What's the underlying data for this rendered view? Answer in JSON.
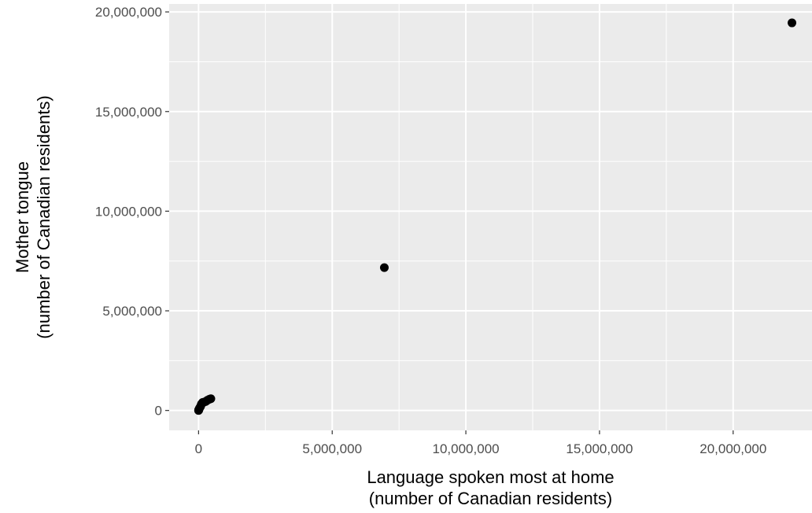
{
  "chart_data": {
    "type": "scatter",
    "title": "",
    "xlabel": [
      "Language spoken most at home",
      "(number of Canadian residents)"
    ],
    "ylabel": [
      "Mother tongue",
      "(number of Canadian residents)"
    ],
    "xlim": [
      -1100000,
      22950000
    ],
    "ylim": [
      -1000000,
      20400000
    ],
    "x_ticks": [
      0,
      5000000,
      10000000,
      15000000,
      20000000
    ],
    "x_tick_labels": [
      "0",
      "5,000,000",
      "10,000,000",
      "15,000,000",
      "20,000,000"
    ],
    "y_ticks": [
      0,
      5000000,
      10000000,
      15000000,
      20000000
    ],
    "y_tick_labels": [
      "0",
      "5,000,000",
      "10,000,000",
      "15,000,000",
      "20,000,000"
    ],
    "grid": true,
    "panel_color": "#ebebeb",
    "grid_color": "#ffffff",
    "point_color": "#000000",
    "points": [
      {
        "x": 22200000,
        "y": 19450000
      },
      {
        "x": 6950000,
        "y": 7170000
      },
      {
        "x": 460000,
        "y": 590000
      },
      {
        "x": 400000,
        "y": 560000
      },
      {
        "x": 330000,
        "y": 510000
      },
      {
        "x": 270000,
        "y": 450000
      },
      {
        "x": 210000,
        "y": 420000
      },
      {
        "x": 150000,
        "y": 400000
      },
      {
        "x": 110000,
        "y": 330000
      },
      {
        "x": 90000,
        "y": 260000
      },
      {
        "x": 70000,
        "y": 190000
      },
      {
        "x": 45000,
        "y": 140000
      },
      {
        "x": 30000,
        "y": 100000
      },
      {
        "x": 20000,
        "y": 70000
      },
      {
        "x": 12000,
        "y": 45000
      },
      {
        "x": 8000,
        "y": 30000
      },
      {
        "x": 5000,
        "y": 15000
      },
      {
        "x": 2000,
        "y": 8000
      },
      {
        "x": 1000,
        "y": 3000
      },
      {
        "x": 500,
        "y": 1000
      }
    ]
  }
}
